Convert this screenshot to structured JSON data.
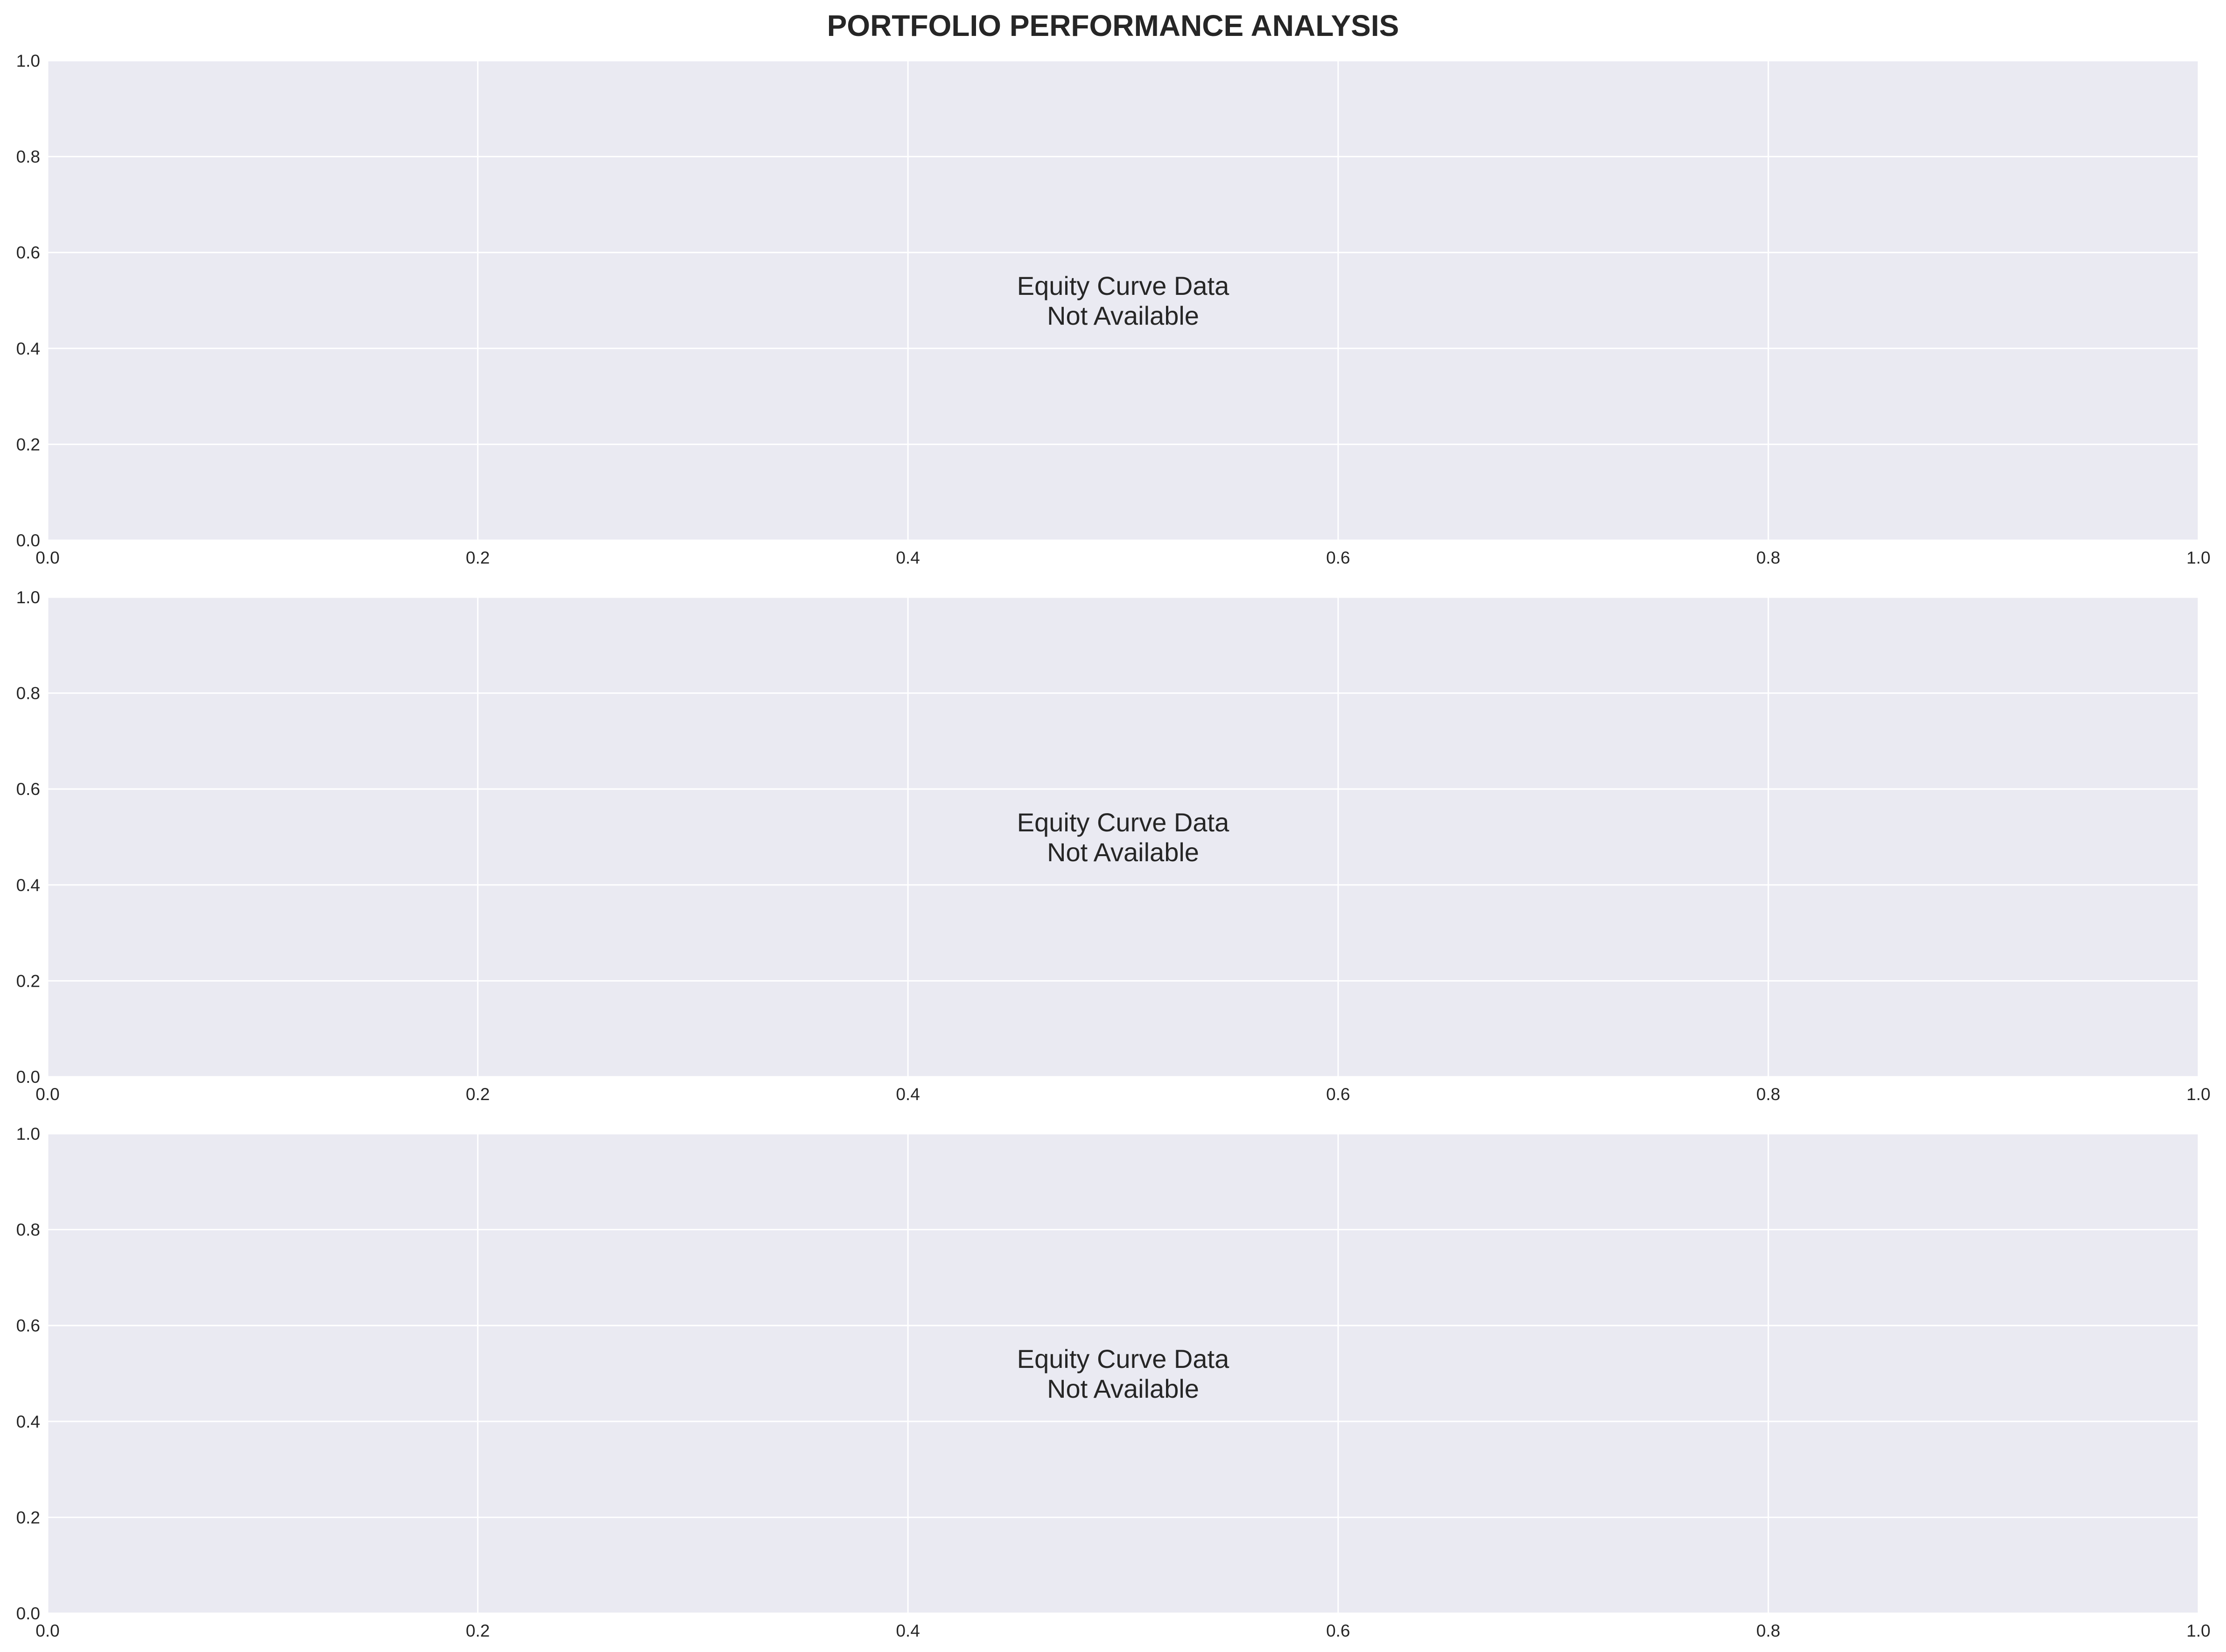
{
  "title": "PORTFOLIO PERFORMANCE ANALYSIS",
  "colors": {
    "axes_background": "#eaeaf2",
    "grid": "#ffffff",
    "text": "#262626",
    "figure_background": "#ffffff"
  },
  "chart_data": [
    {
      "type": "line",
      "title": "",
      "xlabel": "",
      "ylabel": "",
      "xlim": [
        0.0,
        1.0
      ],
      "ylim": [
        0.0,
        1.0
      ],
      "x_ticks": [
        "0.0",
        "0.2",
        "0.4",
        "0.6",
        "0.8",
        "1.0"
      ],
      "y_ticks": [
        "0.0",
        "0.2",
        "0.4",
        "0.6",
        "0.8",
        "1.0"
      ],
      "grid": true,
      "series": [],
      "annotation": [
        "Equity Curve Data",
        "Not Available"
      ]
    },
    {
      "type": "line",
      "title": "",
      "xlabel": "",
      "ylabel": "",
      "xlim": [
        0.0,
        1.0
      ],
      "ylim": [
        0.0,
        1.0
      ],
      "x_ticks": [
        "0.0",
        "0.2",
        "0.4",
        "0.6",
        "0.8",
        "1.0"
      ],
      "y_ticks": [
        "0.0",
        "0.2",
        "0.4",
        "0.6",
        "0.8",
        "1.0"
      ],
      "grid": true,
      "series": [],
      "annotation": [
        "Equity Curve Data",
        "Not Available"
      ]
    },
    {
      "type": "line",
      "title": "",
      "xlabel": "",
      "ylabel": "",
      "xlim": [
        0.0,
        1.0
      ],
      "ylim": [
        0.0,
        1.0
      ],
      "x_ticks": [
        "0.0",
        "0.2",
        "0.4",
        "0.6",
        "0.8",
        "1.0"
      ],
      "y_ticks": [
        "0.0",
        "0.2",
        "0.4",
        "0.6",
        "0.8",
        "1.0"
      ],
      "grid": true,
      "series": [],
      "annotation": [
        "Equity Curve Data",
        "Not Available"
      ]
    }
  ]
}
